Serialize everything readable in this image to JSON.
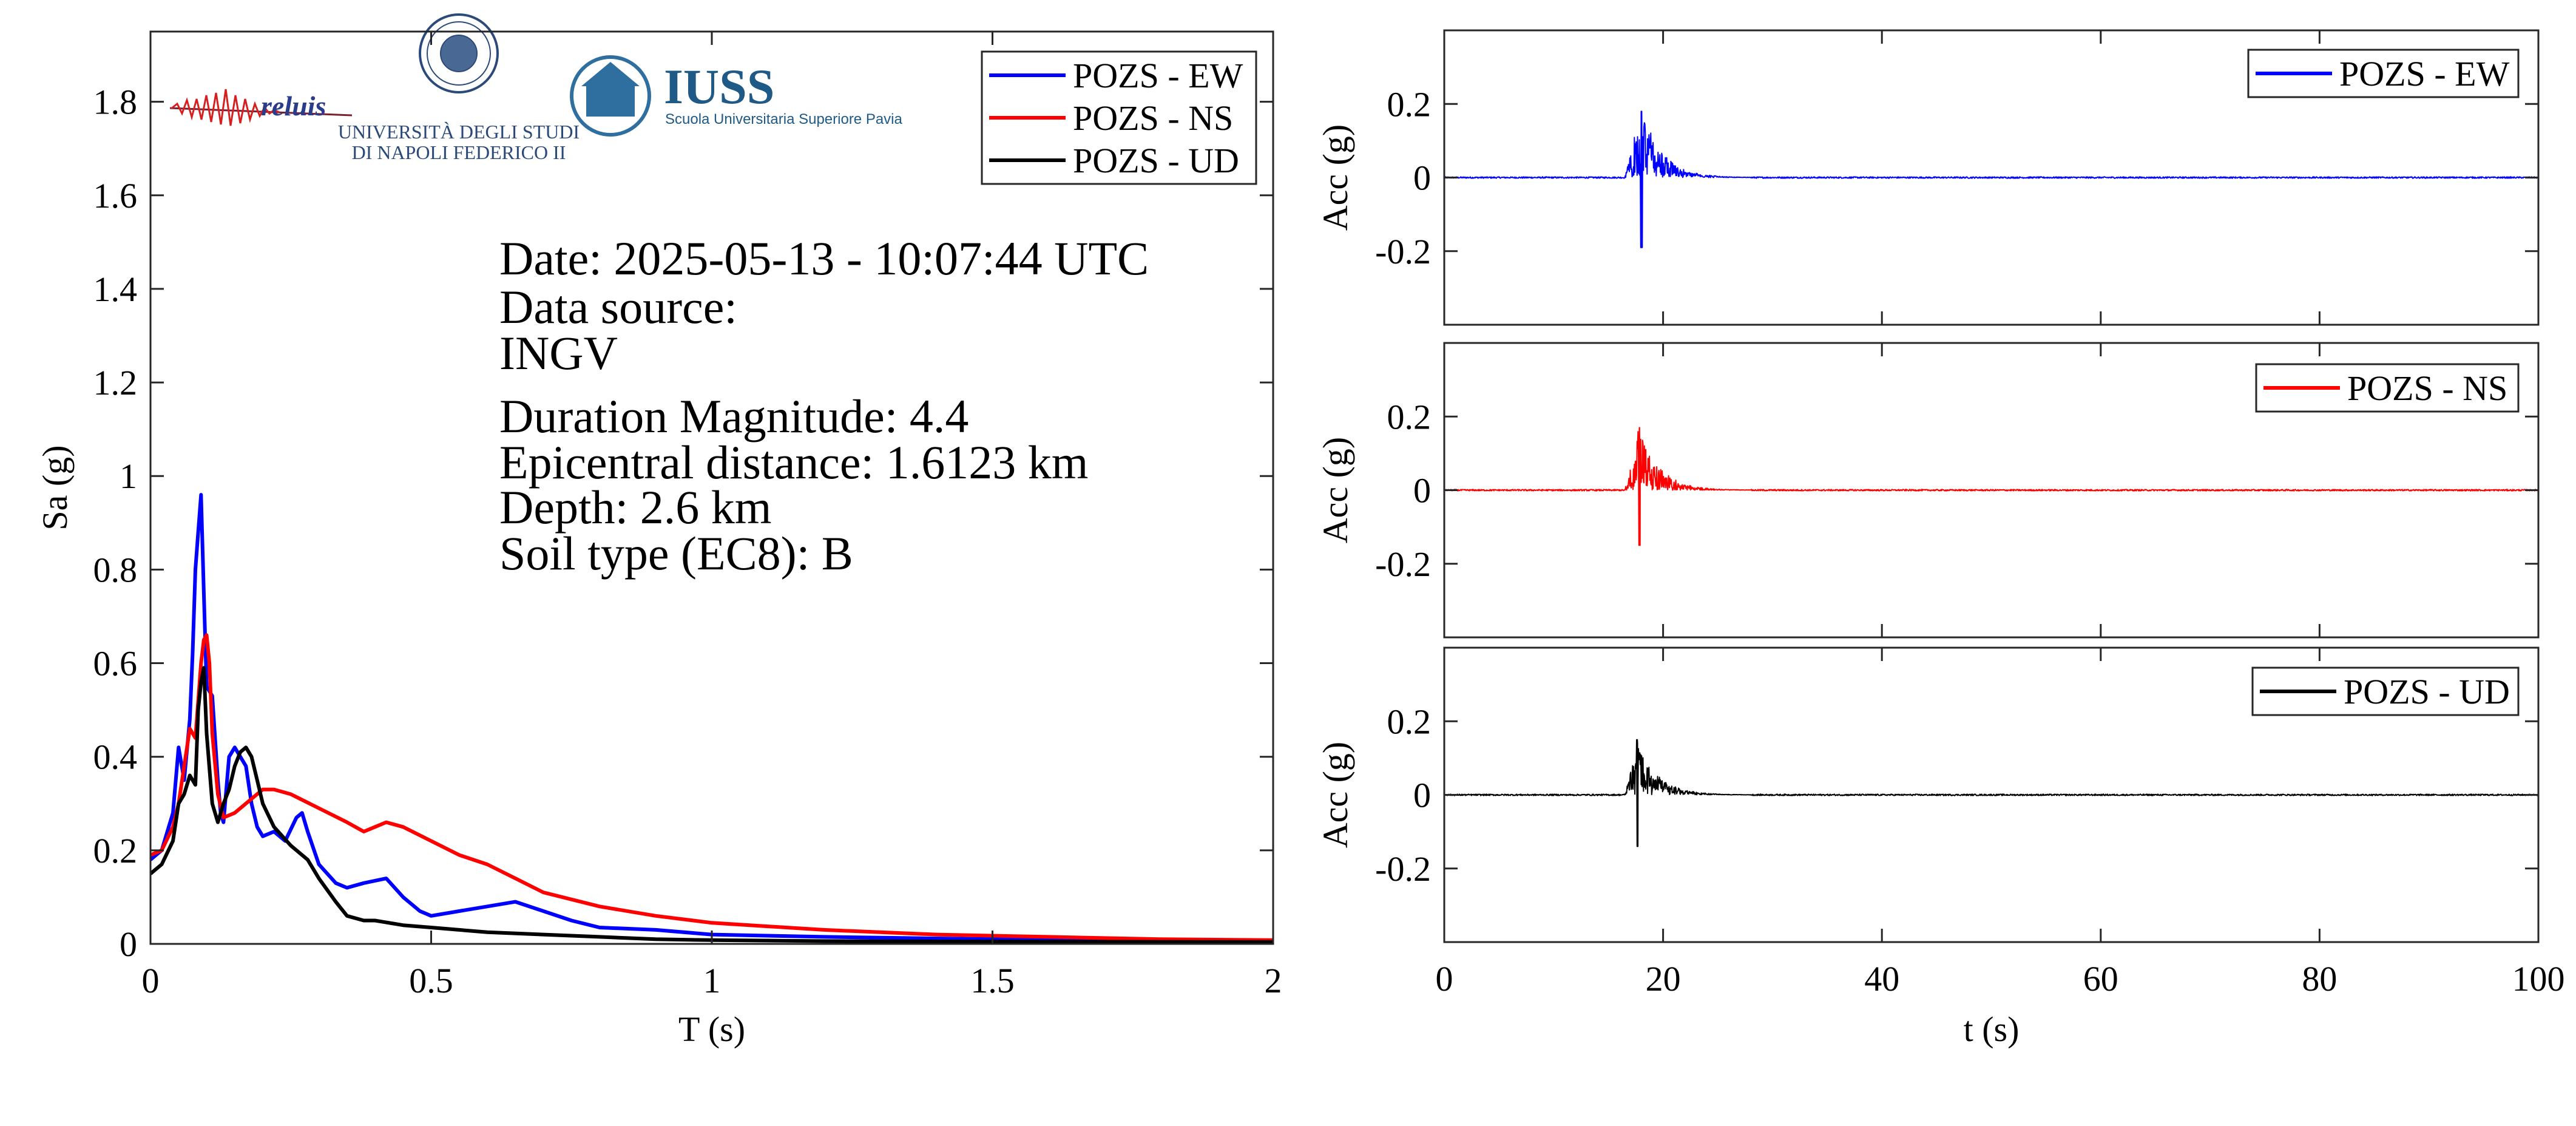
{
  "logos": {
    "reluis": "reluis",
    "unina_line1": "UNIVERSITÀ DEGLI STUDI",
    "unina_line2": "DI NAPOLI FEDERICO II",
    "iuss_name": "IUSS",
    "iuss_subtitle": "Scuola Universitaria Superiore Pavia"
  },
  "event_info": {
    "date": "Date: 2025-05-13 - 10:07:44 UTC",
    "source_label": "Data source:",
    "source": "INGV",
    "magnitude": "Duration Magnitude: 4.4",
    "distance": "Epicentral distance: 1.6123 km",
    "depth": "Depth: 2.6 km",
    "soil": "Soil type (EC8): B"
  },
  "chart_data": [
    {
      "type": "line",
      "title": "",
      "xlabel": "T (s)",
      "ylabel": "Sa (g)",
      "xlim": [
        0,
        2
      ],
      "ylim": [
        0,
        1.95
      ],
      "xticks": [
        0,
        0.5,
        1,
        1.5,
        2
      ],
      "xtick_labels": [
        "0",
        "0.5",
        "1",
        "1.5",
        "2"
      ],
      "yticks": [
        0,
        0.2,
        0.4,
        0.6,
        0.8,
        1,
        1.2,
        1.4,
        1.6,
        1.8
      ],
      "ytick_labels": [
        "0",
        "0.2",
        "0.4",
        "0.6",
        "0.8",
        "1",
        "1.2",
        "1.4",
        "1.6",
        "1.8"
      ],
      "grid": false,
      "legend_position": "top-right",
      "series": [
        {
          "name": "POZS - EW",
          "color": "#0000ff",
          "x": [
            0,
            0.02,
            0.04,
            0.05,
            0.06,
            0.07,
            0.075,
            0.08,
            0.085,
            0.09,
            0.095,
            0.1,
            0.11,
            0.12,
            0.125,
            0.13,
            0.14,
            0.15,
            0.16,
            0.17,
            0.18,
            0.19,
            0.2,
            0.22,
            0.24,
            0.26,
            0.27,
            0.28,
            0.3,
            0.33,
            0.35,
            0.38,
            0.42,
            0.45,
            0.48,
            0.5,
            0.55,
            0.6,
            0.65,
            0.7,
            0.75,
            0.8,
            0.9,
            1.0,
            1.2,
            1.5,
            1.8,
            2.0
          ],
          "y": [
            0.18,
            0.2,
            0.28,
            0.42,
            0.35,
            0.48,
            0.62,
            0.8,
            0.88,
            0.96,
            0.75,
            0.55,
            0.53,
            0.35,
            0.28,
            0.26,
            0.4,
            0.42,
            0.4,
            0.38,
            0.3,
            0.25,
            0.23,
            0.24,
            0.22,
            0.27,
            0.28,
            0.24,
            0.17,
            0.13,
            0.12,
            0.13,
            0.14,
            0.1,
            0.07,
            0.06,
            0.07,
            0.08,
            0.09,
            0.07,
            0.05,
            0.035,
            0.03,
            0.02,
            0.015,
            0.01,
            0.007,
            0.005
          ]
        },
        {
          "name": "POZS - NS",
          "color": "#ff0000",
          "x": [
            0,
            0.02,
            0.04,
            0.05,
            0.06,
            0.07,
            0.08,
            0.09,
            0.095,
            0.1,
            0.105,
            0.11,
            0.12,
            0.13,
            0.15,
            0.18,
            0.2,
            0.22,
            0.25,
            0.3,
            0.35,
            0.38,
            0.4,
            0.42,
            0.45,
            0.5,
            0.55,
            0.6,
            0.65,
            0.7,
            0.8,
            0.9,
            1.0,
            1.2,
            1.4,
            1.6,
            1.8,
            2.0
          ],
          "y": [
            0.19,
            0.2,
            0.25,
            0.3,
            0.38,
            0.46,
            0.44,
            0.6,
            0.65,
            0.66,
            0.6,
            0.45,
            0.32,
            0.27,
            0.28,
            0.31,
            0.33,
            0.33,
            0.32,
            0.29,
            0.26,
            0.24,
            0.25,
            0.26,
            0.25,
            0.22,
            0.19,
            0.17,
            0.14,
            0.11,
            0.08,
            0.06,
            0.045,
            0.03,
            0.02,
            0.015,
            0.01,
            0.008
          ]
        },
        {
          "name": "POZS - UD",
          "color": "#000000",
          "x": [
            0,
            0.02,
            0.04,
            0.05,
            0.06,
            0.07,
            0.08,
            0.085,
            0.09,
            0.095,
            0.1,
            0.11,
            0.12,
            0.13,
            0.14,
            0.15,
            0.16,
            0.17,
            0.18,
            0.19,
            0.2,
            0.22,
            0.25,
            0.28,
            0.3,
            0.33,
            0.35,
            0.38,
            0.4,
            0.45,
            0.5,
            0.55,
            0.6,
            0.7,
            0.8,
            0.9,
            1.0,
            1.2,
            1.5,
            2.0
          ],
          "y": [
            0.15,
            0.17,
            0.22,
            0.3,
            0.32,
            0.36,
            0.34,
            0.5,
            0.56,
            0.59,
            0.45,
            0.3,
            0.26,
            0.3,
            0.33,
            0.38,
            0.41,
            0.42,
            0.4,
            0.35,
            0.3,
            0.25,
            0.21,
            0.18,
            0.14,
            0.09,
            0.06,
            0.05,
            0.05,
            0.04,
            0.035,
            0.03,
            0.025,
            0.02,
            0.015,
            0.01,
            0.008,
            0.006,
            0.005,
            0.004
          ]
        }
      ]
    },
    {
      "type": "line",
      "title": "",
      "xlabel": "",
      "ylabel": "Acc (g)",
      "xlim": [
        0,
        100
      ],
      "ylim": [
        -0.4,
        0.4
      ],
      "yticks": [
        -0.2,
        0,
        0.2
      ],
      "ytick_labels": [
        "-0.2",
        "0",
        "0.2"
      ],
      "grid": false,
      "legend_position": "top-right",
      "series": [
        {
          "name": "POZS - EW",
          "color": "#0000ff",
          "signal": {
            "onset": 16.5,
            "peak_time": 18,
            "peak_positive": 0.18,
            "peak_negative": -0.19,
            "decay_end": 28
          }
        }
      ]
    },
    {
      "type": "line",
      "title": "",
      "xlabel": "",
      "ylabel": "Acc (g)",
      "xlim": [
        0,
        100
      ],
      "ylim": [
        -0.4,
        0.4
      ],
      "yticks": [
        -0.2,
        0,
        0.2
      ],
      "ytick_labels": [
        "-0.2",
        "0",
        "0.2"
      ],
      "grid": false,
      "legend_position": "top-right",
      "series": [
        {
          "name": "POZS - NS",
          "color": "#ff0000",
          "signal": {
            "onset": 16.5,
            "peak_time": 17.8,
            "peak_positive": 0.17,
            "peak_negative": -0.15,
            "decay_end": 28
          }
        }
      ]
    },
    {
      "type": "line",
      "title": "",
      "xlabel": "t (s)",
      "ylabel": "Acc (g)",
      "xlim": [
        0,
        100
      ],
      "ylim": [
        -0.4,
        0.4
      ],
      "xticks": [
        0,
        20,
        40,
        60,
        80,
        100
      ],
      "xtick_labels": [
        "0",
        "20",
        "40",
        "60",
        "80",
        "100"
      ],
      "yticks": [
        -0.2,
        0,
        0.2
      ],
      "ytick_labels": [
        "-0.2",
        "0",
        "0.2"
      ],
      "grid": false,
      "legend_position": "top-right",
      "series": [
        {
          "name": "POZS - UD",
          "color": "#000000",
          "signal": {
            "onset": 16.5,
            "peak_time": 17.6,
            "peak_positive": 0.15,
            "peak_negative": -0.14,
            "decay_end": 28
          }
        }
      ]
    }
  ]
}
